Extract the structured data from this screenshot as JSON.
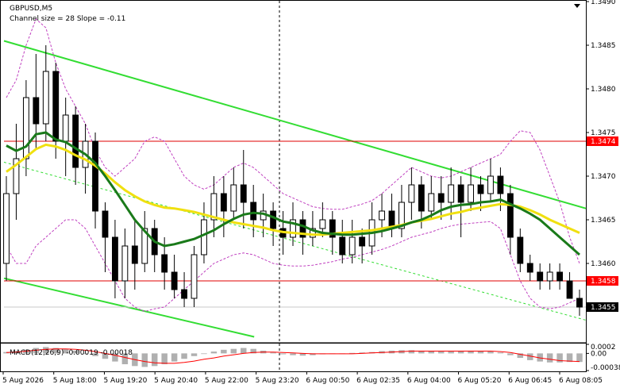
{
  "header": {
    "symbol": "GBPUSD,M5",
    "channel_info": "Channel size = 28 Slope = -0.11"
  },
  "macd_label": "MACD(12,26,9) -0.00019 -0.00018",
  "colors": {
    "bull_candle": "#000000",
    "bear_candle": "#000000",
    "ma_fast": "#1a7a1a",
    "ma_slow": "#f0e010",
    "bollinger": "#c040c0",
    "channel": "#33dd33",
    "level_line": "#e00000",
    "signal_line": "#ff0000",
    "histogram": "#b0b0b0",
    "price_tag_bg": "#ff0000",
    "current_tag_bg": "#000000"
  },
  "chart_data": {
    "type": "candlestick",
    "price_axis": {
      "min": 1.3451,
      "max": 1.349,
      "ticks": [
        "1.3490",
        "1.3485",
        "1.3480",
        "1.3475",
        "1.3470",
        "1.3465",
        "1.3460",
        "1.3455"
      ]
    },
    "time_axis": {
      "labels": [
        "5 Aug 2026",
        "5 Aug 18:00",
        "5 Aug 19:20",
        "5 Aug 20:40",
        "5 Aug 22:00",
        "5 Aug 23:20",
        "6 Aug 00:50",
        "6 Aug 02:35",
        "6 Aug 04:00",
        "6 Aug 05:20",
        "6 Aug 06:45",
        "6 Aug 08:05"
      ]
    },
    "levels": [
      {
        "price": 1.3474,
        "label": "1.3474",
        "style": "red-solid"
      },
      {
        "price": 1.3458,
        "label": "1.3458",
        "style": "red-solid"
      }
    ],
    "current_price": {
      "price": 1.3455,
      "label": "1.3455"
    },
    "channel": {
      "upper": [
        [
          0,
          1.34855
        ],
        [
          1,
          1.34663
        ]
      ],
      "lower": [
        [
          0,
          1.34583
        ],
        [
          1,
          1.34427
        ]
      ],
      "mid_dashed": [
        [
          0,
          1.34716
        ],
        [
          1,
          1.34535
        ]
      ]
    },
    "candles": [
      [
        1.346,
        1.3468,
        1.3458,
        1.347
      ],
      [
        1.3468,
        1.3472,
        1.3465,
        1.3476
      ],
      [
        1.3472,
        1.3479,
        1.347,
        1.3481
      ],
      [
        1.3479,
        1.3476,
        1.3473,
        1.3484
      ],
      [
        1.3476,
        1.3482,
        1.3474,
        1.3485
      ],
      [
        1.3482,
        1.3474,
        1.3472,
        1.3483
      ],
      [
        1.3474,
        1.3477,
        1.347,
        1.3479
      ],
      [
        1.3477,
        1.3471,
        1.3469,
        1.3478
      ],
      [
        1.3471,
        1.3474,
        1.3468,
        1.3476
      ],
      [
        1.3474,
        1.3466,
        1.3464,
        1.3475
      ],
      [
        1.3466,
        1.3463,
        1.3459,
        1.3467
      ],
      [
        1.3463,
        1.3458,
        1.3456,
        1.3465
      ],
      [
        1.3458,
        1.3462,
        1.3456,
        1.3464
      ],
      [
        1.3462,
        1.346,
        1.3457,
        1.3465
      ],
      [
        1.346,
        1.3464,
        1.3459,
        1.3466
      ],
      [
        1.3464,
        1.3461,
        1.3459,
        1.3465
      ],
      [
        1.3461,
        1.3459,
        1.3457,
        1.3463
      ],
      [
        1.3459,
        1.3457,
        1.3456,
        1.3461
      ],
      [
        1.3457,
        1.3456,
        1.3455,
        1.3459
      ],
      [
        1.3456,
        1.3461,
        1.3455,
        1.3462
      ],
      [
        1.3461,
        1.3465,
        1.346,
        1.3467
      ],
      [
        1.3465,
        1.3468,
        1.3463,
        1.347
      ],
      [
        1.3468,
        1.3466,
        1.3463,
        1.347
      ],
      [
        1.3466,
        1.3469,
        1.3465,
        1.3471
      ],
      [
        1.3469,
        1.3467,
        1.3464,
        1.3473
      ],
      [
        1.3467,
        1.3465,
        1.3463,
        1.3469
      ],
      [
        1.3465,
        1.3466,
        1.3463,
        1.3468
      ],
      [
        1.3466,
        1.3464,
        1.3462,
        1.3467
      ],
      [
        1.3464,
        1.3463,
        1.3461,
        1.3466
      ],
      [
        1.3463,
        1.3465,
        1.3462,
        1.3467
      ],
      [
        1.3465,
        1.3463,
        1.3461,
        1.3466
      ],
      [
        1.3463,
        1.3464,
        1.3462,
        1.3466
      ],
      [
        1.3464,
        1.3465,
        1.3463,
        1.3467
      ],
      [
        1.3465,
        1.3463,
        1.3461,
        1.3466
      ],
      [
        1.3463,
        1.3461,
        1.346,
        1.3465
      ],
      [
        1.3461,
        1.3463,
        1.346,
        1.3465
      ],
      [
        1.3463,
        1.3462,
        1.346,
        1.3464
      ],
      [
        1.3462,
        1.3465,
        1.3461,
        1.3467
      ],
      [
        1.3465,
        1.3466,
        1.3463,
        1.3468
      ],
      [
        1.3466,
        1.3464,
        1.3463,
        1.3468
      ],
      [
        1.3464,
        1.3467,
        1.3463,
        1.3469
      ],
      [
        1.3467,
        1.3469,
        1.3465,
        1.3471
      ],
      [
        1.3469,
        1.3466,
        1.3464,
        1.347
      ],
      [
        1.3466,
        1.3468,
        1.3465,
        1.347
      ],
      [
        1.3468,
        1.3467,
        1.3465,
        1.347
      ],
      [
        1.3467,
        1.3469,
        1.3465,
        1.3471
      ],
      [
        1.3469,
        1.3467,
        1.3463,
        1.347
      ],
      [
        1.3467,
        1.3469,
        1.3466,
        1.3471
      ],
      [
        1.3469,
        1.3468,
        1.3466,
        1.347
      ],
      [
        1.3468,
        1.347,
        1.3467,
        1.3472
      ],
      [
        1.347,
        1.3468,
        1.3466,
        1.3471
      ],
      [
        1.3468,
        1.3463,
        1.3461,
        1.3469
      ],
      [
        1.3463,
        1.346,
        1.3459,
        1.3464
      ],
      [
        1.346,
        1.3459,
        1.3458,
        1.3461
      ],
      [
        1.3459,
        1.3458,
        1.3457,
        1.346
      ],
      [
        1.3458,
        1.3459,
        1.3457,
        1.346
      ],
      [
        1.3459,
        1.3458,
        1.3457,
        1.346
      ],
      [
        1.3458,
        1.3456,
        1.3456,
        1.3459
      ],
      [
        1.3456,
        1.3455,
        1.3454,
        1.3457
      ]
    ],
    "ma_fast": [
      1.34735,
      1.34729,
      1.34734,
      1.34748,
      1.3475,
      1.34742,
      1.34739,
      1.34732,
      1.34725,
      1.34715,
      1.347,
      1.34684,
      1.34667,
      1.3465,
      1.34637,
      1.34625,
      1.3462,
      1.34622,
      1.34625,
      1.34628,
      1.34633,
      1.34638,
      1.34645,
      1.34651,
      1.34656,
      1.34658,
      1.34657,
      1.34653,
      1.34648,
      1.34646,
      1.34643,
      1.34638,
      1.34635,
      1.34634,
      1.34633,
      1.34633,
      1.34634,
      1.34635,
      1.34637,
      1.3464,
      1.34643,
      1.34647,
      1.3465,
      1.34655,
      1.34661,
      1.34665,
      1.34667,
      1.34668,
      1.3467,
      1.34671,
      1.34673,
      1.34668,
      1.34663,
      1.34657,
      1.3465,
      1.3464,
      1.3463,
      1.3462,
      1.3461
    ],
    "ma_slow": [
      1.34705,
      1.34713,
      1.34722,
      1.34731,
      1.34736,
      1.34734,
      1.3473,
      1.34724,
      1.34719,
      1.34712,
      1.34703,
      1.34693,
      1.34684,
      1.34677,
      1.34671,
      1.34667,
      1.34664,
      1.34663,
      1.34661,
      1.34659,
      1.34656,
      1.34653,
      1.3465,
      1.34647,
      1.34645,
      1.34643,
      1.34641,
      1.34638,
      1.34636,
      1.34635,
      1.34634,
      1.34633,
      1.34633,
      1.34634,
      1.34635,
      1.34636,
      1.34637,
      1.34638,
      1.3464,
      1.34642,
      1.34644,
      1.34647,
      1.34649,
      1.34651,
      1.34654,
      1.34657,
      1.34659,
      1.34662,
      1.34664,
      1.34666,
      1.34668,
      1.34667,
      1.34665,
      1.34661,
      1.34656,
      1.3465,
      1.34645,
      1.3464,
      1.34635
    ],
    "bb_upper": [
      1.3479,
      1.3481,
      1.3485,
      1.3488,
      1.3487,
      1.3483,
      1.348,
      1.3478,
      1.3476,
      1.3473,
      1.3471,
      1.347,
      1.3471,
      1.3472,
      1.3474,
      1.34745,
      1.3474,
      1.3472,
      1.347,
      1.3469,
      1.34685,
      1.3469,
      1.347,
      1.3471,
      1.34715,
      1.3471,
      1.347,
      1.3469,
      1.3468,
      1.34675,
      1.3467,
      1.34665,
      1.34663,
      1.34662,
      1.34662,
      1.34665,
      1.34668,
      1.34672,
      1.3468,
      1.3469,
      1.347,
      1.3471,
      1.34705,
      1.347,
      1.34698,
      1.347,
      1.34705,
      1.3471,
      1.34715,
      1.3472,
      1.34725,
      1.3474,
      1.34752,
      1.3475,
      1.3473,
      1.347,
      1.3467,
      1.3463,
      1.346
    ],
    "bb_lower": [
      1.3462,
      1.346,
      1.346,
      1.3462,
      1.3463,
      1.3464,
      1.3465,
      1.3465,
      1.3464,
      1.3462,
      1.346,
      1.3458,
      1.3456,
      1.3455,
      1.34545,
      1.34548,
      1.3455,
      1.3456,
      1.3457,
      1.3458,
      1.3459,
      1.346,
      1.34605,
      1.3461,
      1.34612,
      1.3461,
      1.34605,
      1.346,
      1.34598,
      1.34597,
      1.34597,
      1.34598,
      1.346,
      1.34602,
      1.34605,
      1.34607,
      1.3461,
      1.34613,
      1.34616,
      1.3462,
      1.34625,
      1.3463,
      1.34633,
      1.34636,
      1.3464,
      1.34643,
      1.34645,
      1.34646,
      1.34647,
      1.34648,
      1.3464,
      1.3461,
      1.3458,
      1.3456,
      1.3455,
      1.34548,
      1.3455,
      1.34555,
      1.3456
    ],
    "macd": {
      "axis_ticks": [
        "0.0002",
        "0.00",
        "-0.00038"
      ],
      "min": -0.00038,
      "max": 0.0002,
      "histogram": [
        3e-05,
        5e-05,
        8e-05,
        0.00012,
        0.00014,
        0.00012,
        0.0001,
        6e-05,
        0.0,
        -6e-05,
        -0.00012,
        -0.00018,
        -0.00024,
        -0.00028,
        -0.0003,
        -0.00028,
        -0.00024,
        -0.00018,
        -0.00012,
        -6e-05,
        0.0,
        4e-05,
        8e-05,
        0.0001,
        0.00012,
        0.0001,
        6e-05,
        2e-05,
        -2e-05,
        -4e-05,
        -5e-05,
        -4e-05,
        -2e-05,
        -1e-05,
        0.0,
        1e-05,
        2e-05,
        3e-05,
        5e-05,
        6e-05,
        7e-05,
        7e-05,
        6e-05,
        5e-05,
        4e-05,
        4e-05,
        5e-05,
        6e-05,
        5e-05,
        4e-05,
        2e-05,
        -4e-05,
        -0.0001,
        -0.00015,
        -0.00018,
        -0.0002,
        -0.0002,
        -0.00019,
        -0.00019
      ],
      "signal": [
        2e-05,
        3e-05,
        5e-05,
        7e-05,
        9e-05,
        0.0001,
        0.0001,
        9e-05,
        7e-05,
        4e-05,
        0.0,
        -4e-05,
        -9e-05,
        -0.00014,
        -0.00018,
        -0.00021,
        -0.00022,
        -0.00022,
        -0.0002,
        -0.00017,
        -0.00013,
        -0.0001,
        -6e-05,
        -3e-05,
        0.0,
        2e-05,
        3e-05,
        3e-05,
        2e-05,
        1e-05,
        0.0,
        -1e-05,
        -1e-05,
        -1e-05,
        -1e-05,
        -1e-05,
        0.0,
        1e-05,
        2e-05,
        3e-05,
        4e-05,
        5e-05,
        5e-05,
        5e-05,
        5e-05,
        5e-05,
        5e-05,
        5e-05,
        5e-05,
        5e-05,
        4e-05,
        2e-05,
        -2e-05,
        -6e-05,
        -0.0001,
        -0.00013,
        -0.00016,
        -0.00017,
        -0.00018
      ]
    }
  }
}
